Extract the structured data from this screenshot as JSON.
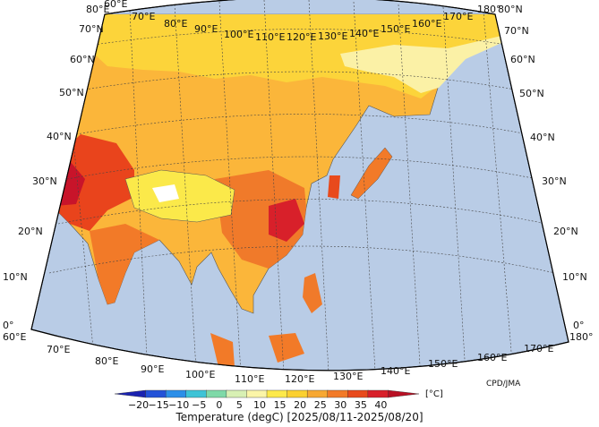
{
  "map": {
    "title": "Temperature (degC) [2025/08/11-2025/08/20]",
    "credit": "CPD/JMA",
    "unit": "[°C]",
    "ocean_color": "#b9cce6",
    "lon_labels_top": [
      "80°E",
      "60°E",
      "70°E",
      "80°E",
      "90°E",
      "100°E",
      "110°E",
      "120°E",
      "130°E",
      "140°E",
      "150°E",
      "160°E",
      "170°E",
      "180°"
    ],
    "lon_labels_bottom": [
      "60°E",
      "70°E",
      "80°E",
      "90°E",
      "100°E",
      "110°E",
      "120°E",
      "130°E",
      "140°E",
      "150°E",
      "160°E",
      "170°E",
      "180°"
    ],
    "lat_labels_left": [
      "70°N",
      "60°N",
      "50°N",
      "40°N",
      "30°N",
      "20°N",
      "10°N",
      "0°"
    ],
    "lat_labels_right": [
      "80°N",
      "70°N",
      "60°N",
      "50°N",
      "40°N",
      "30°N",
      "20°N",
      "10°N",
      "0°"
    ],
    "colorbar": {
      "ticks": [
        "−20",
        "−15",
        "−10",
        "−5",
        "0",
        "5",
        "10",
        "15",
        "20",
        "25",
        "30",
        "35",
        "40"
      ],
      "colors": [
        "#1a22b0",
        "#2352d8",
        "#2c8fe8",
        "#3ec3d6",
        "#7fd9a8",
        "#d8f0b4",
        "#fbf5a8",
        "#fde94a",
        "#fbd030",
        "#f7a833",
        "#f27a28",
        "#e84a1c",
        "#d8202a",
        "#b81024"
      ]
    }
  }
}
